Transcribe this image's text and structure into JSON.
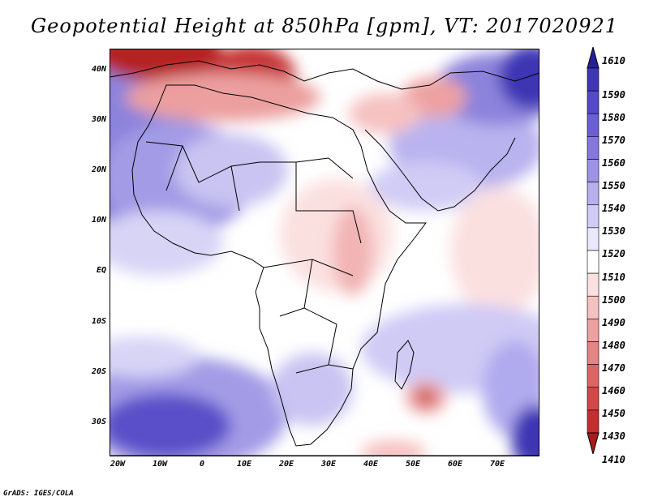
{
  "title": "Geopotential Height at 850hPa [gpm], VT: 2017020921",
  "credit": "GrADS: IGES/COLA",
  "map": {
    "lat_labels": [
      "40N",
      "30N",
      "20N",
      "10N",
      "EQ",
      "10S",
      "20S",
      "30S"
    ],
    "lon_labels": [
      "20W",
      "10W",
      "0",
      "10E",
      "20E",
      "30E",
      "40E",
      "50E",
      "60E",
      "70E"
    ]
  },
  "colorbar": {
    "levels": [
      "1610",
      "1590",
      "1580",
      "1570",
      "1560",
      "1550",
      "1540",
      "1530",
      "1520",
      "1510",
      "1500",
      "1490",
      "1480",
      "1470",
      "1460",
      "1450",
      "1430",
      "1410"
    ],
    "colors": [
      "#24209a",
      "#3e36b4",
      "#5449c6",
      "#6b5fd4",
      "#8478de",
      "#9c93e6",
      "#b6b0ee",
      "#d0ccf5",
      "#eae8fb",
      "#ffffff",
      "#fbe0e0",
      "#f6c1c1",
      "#eda1a1",
      "#e58484",
      "#dc6666",
      "#d04848",
      "#c32e2e",
      "#a91b1b"
    ]
  }
}
